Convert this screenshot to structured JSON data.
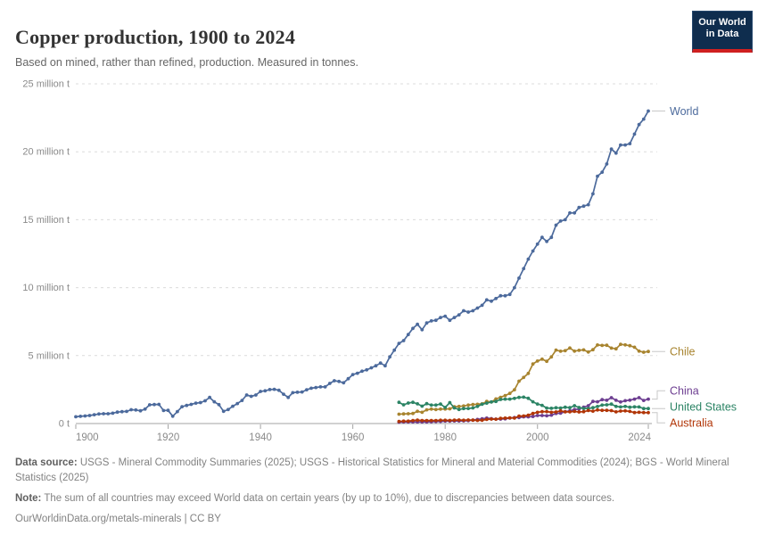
{
  "header": {
    "title": "Copper production, 1900 to 2024",
    "subtitle": "Based on mined, rather than refined, production. Measured in tonnes.",
    "logo": {
      "line1": "Our World",
      "line2": "in Data"
    }
  },
  "chart_data": {
    "type": "line",
    "title": "Copper production, 1900 to 2024",
    "unit": "million tonnes",
    "xlim": [
      1900,
      2024
    ],
    "ylim": [
      0,
      25
    ],
    "grid": "horizontal-dashed",
    "legend_position": "labels-at-line-ends-right",
    "markers": "point-per-year",
    "y_ticks": [
      {
        "value": 0,
        "label": "0 t"
      },
      {
        "value": 5,
        "label": "5 million t"
      },
      {
        "value": 10,
        "label": "10 million t"
      },
      {
        "value": 15,
        "label": "15 million t"
      },
      {
        "value": 20,
        "label": "20 million t"
      },
      {
        "value": 25,
        "label": "25 million t"
      }
    ],
    "x_ticks": [
      {
        "value": 1900,
        "label": "1900"
      },
      {
        "value": 1920,
        "label": "1920"
      },
      {
        "value": 1940,
        "label": "1940"
      },
      {
        "value": 1960,
        "label": "1960"
      },
      {
        "value": 1980,
        "label": "1980"
      },
      {
        "value": 2000,
        "label": "2000"
      },
      {
        "value": 2024,
        "label": "2024"
      }
    ],
    "series": [
      {
        "name": "World",
        "color": "#4C6A9C",
        "start_year": 1900,
        "values": [
          0.5,
          0.53,
          0.56,
          0.59,
          0.65,
          0.7,
          0.72,
          0.72,
          0.76,
          0.84,
          0.87,
          0.89,
          1.02,
          1.0,
          0.94,
          1.06,
          1.38,
          1.4,
          1.41,
          0.96,
          0.97,
          0.54,
          0.88,
          1.24,
          1.33,
          1.41,
          1.5,
          1.54,
          1.67,
          1.92,
          1.6,
          1.39,
          0.9,
          1.03,
          1.27,
          1.47,
          1.7,
          2.1,
          2.0,
          2.1,
          2.36,
          2.41,
          2.5,
          2.52,
          2.45,
          2.16,
          1.92,
          2.27,
          2.3,
          2.32,
          2.49,
          2.6,
          2.65,
          2.7,
          2.7,
          2.95,
          3.15,
          3.1,
          3.0,
          3.3,
          3.6,
          3.7,
          3.85,
          3.95,
          4.1,
          4.25,
          4.45,
          4.25,
          4.9,
          5.4,
          5.9,
          6.1,
          6.55,
          7.0,
          7.3,
          6.9,
          7.4,
          7.55,
          7.6,
          7.8,
          7.9,
          7.6,
          7.8,
          8.0,
          8.3,
          8.2,
          8.3,
          8.5,
          8.7,
          9.1,
          9.0,
          9.2,
          9.4,
          9.4,
          9.5,
          10.0,
          10.7,
          11.4,
          12.1,
          12.7,
          13.2,
          13.7,
          13.4,
          13.7,
          14.6,
          14.9,
          15.0,
          15.5,
          15.5,
          15.9,
          16.0,
          16.1,
          16.9,
          18.2,
          18.5,
          19.1,
          20.2,
          19.9,
          20.5,
          20.5,
          20.6,
          21.3,
          22.0,
          22.4,
          23.0
        ]
      },
      {
        "name": "Chile",
        "color": "#A8842F",
        "start_year": 1970,
        "values": [
          0.69,
          0.71,
          0.72,
          0.74,
          0.9,
          0.83,
          1.01,
          1.06,
          1.03,
          1.06,
          1.07,
          1.08,
          1.24,
          1.26,
          1.29,
          1.36,
          1.4,
          1.42,
          1.45,
          1.63,
          1.59,
          1.81,
          1.93,
          2.06,
          2.22,
          2.49,
          3.12,
          3.39,
          3.69,
          4.38,
          4.6,
          4.74,
          4.58,
          4.9,
          5.41,
          5.32,
          5.36,
          5.56,
          5.33,
          5.39,
          5.42,
          5.26,
          5.43,
          5.78,
          5.75,
          5.76,
          5.55,
          5.5,
          5.83,
          5.79,
          5.73,
          5.62,
          5.33,
          5.25,
          5.3
        ]
      },
      {
        "name": "China",
        "color": "#6D3E91",
        "start_year": 1970,
        "values": [
          0.1,
          0.11,
          0.11,
          0.12,
          0.12,
          0.12,
          0.12,
          0.13,
          0.15,
          0.16,
          0.18,
          0.18,
          0.19,
          0.19,
          0.2,
          0.21,
          0.25,
          0.3,
          0.35,
          0.4,
          0.36,
          0.33,
          0.33,
          0.35,
          0.4,
          0.44,
          0.44,
          0.49,
          0.49,
          0.52,
          0.59,
          0.59,
          0.57,
          0.62,
          0.74,
          0.76,
          0.87,
          0.93,
          1.03,
          1.07,
          1.2,
          1.31,
          1.63,
          1.6,
          1.76,
          1.71,
          1.9,
          1.71,
          1.59,
          1.68,
          1.72,
          1.8,
          1.9,
          1.7,
          1.8
        ]
      },
      {
        "name": "United States",
        "color": "#2C8465",
        "start_year": 1970,
        "values": [
          1.56,
          1.38,
          1.51,
          1.56,
          1.45,
          1.28,
          1.46,
          1.36,
          1.36,
          1.44,
          1.18,
          1.54,
          1.15,
          1.04,
          1.1,
          1.11,
          1.15,
          1.26,
          1.42,
          1.5,
          1.59,
          1.63,
          1.77,
          1.8,
          1.8,
          1.85,
          1.92,
          1.94,
          1.86,
          1.6,
          1.44,
          1.34,
          1.14,
          1.12,
          1.16,
          1.14,
          1.2,
          1.17,
          1.31,
          1.18,
          1.11,
          1.11,
          1.17,
          1.25,
          1.36,
          1.38,
          1.43,
          1.26,
          1.22,
          1.26,
          1.2,
          1.23,
          1.22,
          1.1,
          1.1
        ]
      },
      {
        "name": "Australia",
        "color": "#B13507",
        "start_year": 1970,
        "values": [
          0.16,
          0.18,
          0.18,
          0.22,
          0.25,
          0.22,
          0.22,
          0.22,
          0.22,
          0.24,
          0.24,
          0.23,
          0.25,
          0.26,
          0.24,
          0.26,
          0.25,
          0.23,
          0.24,
          0.3,
          0.33,
          0.32,
          0.38,
          0.4,
          0.42,
          0.4,
          0.55,
          0.56,
          0.61,
          0.74,
          0.83,
          0.87,
          0.88,
          0.83,
          0.85,
          0.93,
          0.86,
          0.86,
          0.89,
          0.85,
          0.87,
          0.96,
          0.91,
          1.0,
          0.97,
          0.97,
          0.95,
          0.86,
          0.92,
          0.93,
          0.89,
          0.81,
          0.83,
          0.81,
          0.8
        ]
      }
    ]
  },
  "footer": {
    "data_source_label": "Data source:",
    "data_source": "USGS - Mineral Commodity Summaries (2025); USGS - Historical Statistics for Mineral and Material Commodities (2024); BGS - World Mineral Statistics (2025)",
    "note_label": "Note:",
    "note": "The sum of all countries may exceed World data on certain years (by up to 10%), due to discrepancies between data sources.",
    "permalink": "OurWorldinData.org/metals-minerals | CC BY"
  }
}
